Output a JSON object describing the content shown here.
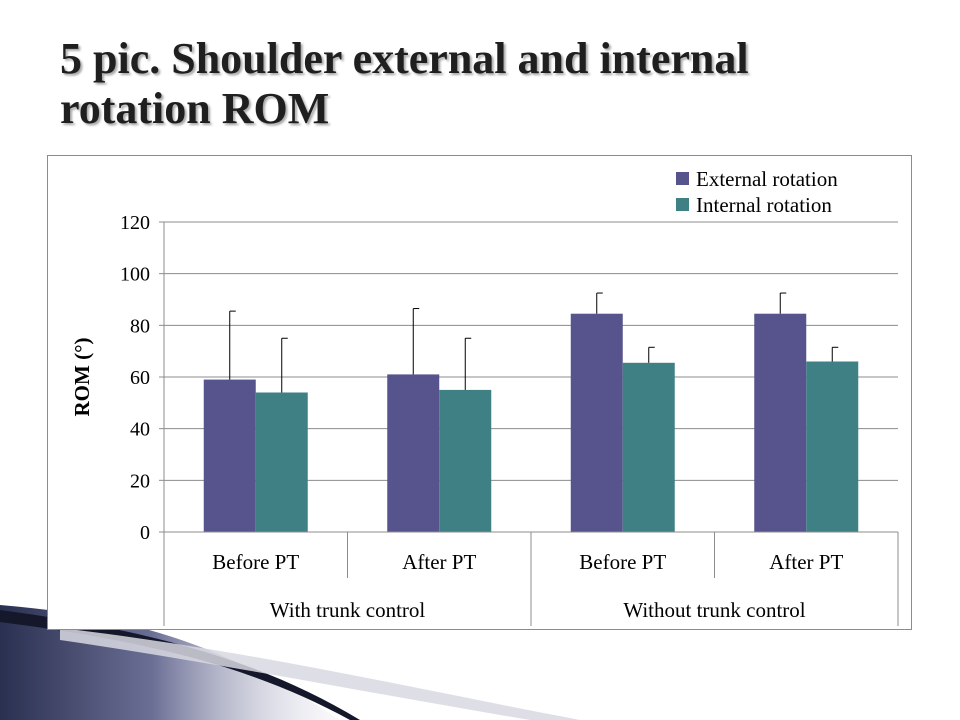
{
  "slide": {
    "title_line1": "5 pic. Shoulder external and internal",
    "title_line2": "rotation ROM"
  },
  "colors": {
    "external": "#57538c",
    "internal": "#3f8085",
    "deco_dark": "#1c2235",
    "deco_light": "#c8c8d8"
  },
  "chart_data": {
    "type": "bar",
    "title": "",
    "xlabel": "",
    "ylabel": "ROM (°)",
    "ylim": [
      0,
      120
    ],
    "yticks": [
      0,
      20,
      40,
      60,
      80,
      100,
      120
    ],
    "grid": true,
    "legend_position": "top-right",
    "categories": [
      "Before PT",
      "After PT",
      "Before PT",
      "After PT"
    ],
    "groups": [
      {
        "label": "With trunk control",
        "categories": [
          0,
          1
        ]
      },
      {
        "label": "Without trunk control",
        "categories": [
          2,
          3
        ]
      }
    ],
    "series": [
      {
        "name": "External rotation",
        "values": [
          59,
          61,
          84.5,
          84.5
        ],
        "error": [
          26.5,
          25.5,
          8,
          8
        ]
      },
      {
        "name": "Internal rotation",
        "values": [
          54,
          55,
          65.5,
          66
        ],
        "error": [
          21,
          20,
          6,
          5.5
        ]
      }
    ]
  }
}
